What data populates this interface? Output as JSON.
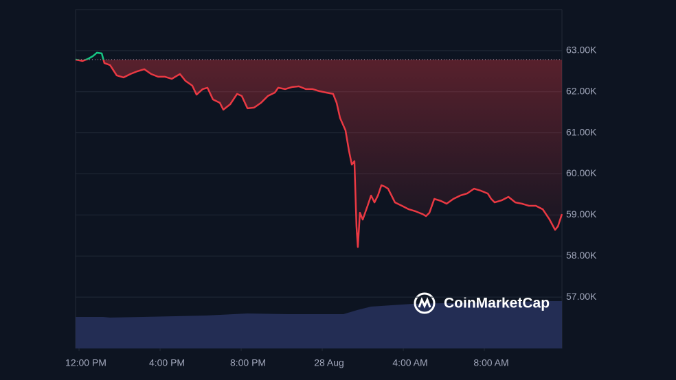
{
  "chart_data": {
    "type": "line",
    "watermark": "CoinMarketCap",
    "x": [
      -0.17,
      0.17,
      0.44,
      0.68,
      0.88,
      1.12,
      1.25,
      1.53,
      1.86,
      2.2,
      2.54,
      2.88,
      3.22,
      3.56,
      3.9,
      4.24,
      4.58,
      4.98,
      5.25,
      5.59,
      5.8,
      6.1,
      6.34,
      6.61,
      6.95,
      7.12,
      7.46,
      7.8,
      8.03,
      8.31,
      8.64,
      8.98,
      9.32,
      9.66,
      9.83,
      10.17,
      10.51,
      10.85,
      11.19,
      11.53,
      11.86,
      12.2,
      12.54,
      12.71,
      12.88,
      13.15,
      13.32,
      13.46,
      13.59,
      13.69,
      13.76,
      13.86,
      14.0,
      14.24,
      14.41,
      14.58,
      14.75,
      14.92,
      15.08,
      15.25,
      15.59,
      15.93,
      16.27,
      16.61,
      16.95,
      17.12,
      17.29,
      17.53,
      17.86,
      18.14,
      18.47,
      18.81,
      19.15,
      19.49,
      19.83,
      20.17,
      20.34,
      20.51,
      20.85,
      21.19,
      21.53,
      21.86,
      22.2,
      22.54,
      22.88,
      23.22,
      23.49,
      23.63,
      23.83
    ],
    "series": [
      {
        "color": "#ea3943",
        "up_color": "#16c784",
        "values": [
          62783,
          62749,
          62799,
          62866,
          62950,
          62933,
          62699,
          62649,
          62398,
          62348,
          62432,
          62499,
          62549,
          62432,
          62365,
          62365,
          62315,
          62432,
          62265,
          62148,
          61930,
          62064,
          62097,
          61813,
          61730,
          61563,
          61696,
          61947,
          61897,
          61596,
          61613,
          61730,
          61897,
          61980,
          62097,
          62064,
          62114,
          62131,
          62064,
          62064,
          62014,
          61980,
          61947,
          61730,
          61362,
          61061,
          60560,
          60225,
          60309,
          58721,
          58220,
          59055,
          58888,
          59223,
          59473,
          59306,
          59473,
          59724,
          59691,
          59640,
          59306,
          59223,
          59139,
          59089,
          59022,
          58972,
          59055,
          59390,
          59340,
          59273,
          59390,
          59473,
          59523,
          59640,
          59590,
          59523,
          59390,
          59306,
          59356,
          59440,
          59306,
          59273,
          59223,
          59223,
          59139,
          58888,
          58638,
          58721,
          59022
        ]
      }
    ],
    "reference": 62783,
    "xlim": [
      -0.17,
      23.83
    ],
    "xticks": [
      {
        "value": 0,
        "label": "12:00 PM"
      },
      {
        "value": 4,
        "label": "4:00 PM"
      },
      {
        "value": 8,
        "label": "8:00 PM"
      },
      {
        "value": 12,
        "label": "28 Aug"
      },
      {
        "value": 16,
        "label": "4:00 AM"
      },
      {
        "value": 20,
        "label": "8:00 AM"
      }
    ],
    "ylim": [
      55750,
      64000
    ],
    "yticks": [
      {
        "value": 57000,
        "label": "57.00K"
      },
      {
        "value": 58000,
        "label": "58.00K"
      },
      {
        "value": 59000,
        "label": "59.00K"
      },
      {
        "value": 60000,
        "label": "60.00K"
      },
      {
        "value": 61000,
        "label": "61.00K"
      },
      {
        "value": 62000,
        "label": "62.00K"
      },
      {
        "value": 63000,
        "label": "63.00K"
      }
    ],
    "grid": true
  }
}
